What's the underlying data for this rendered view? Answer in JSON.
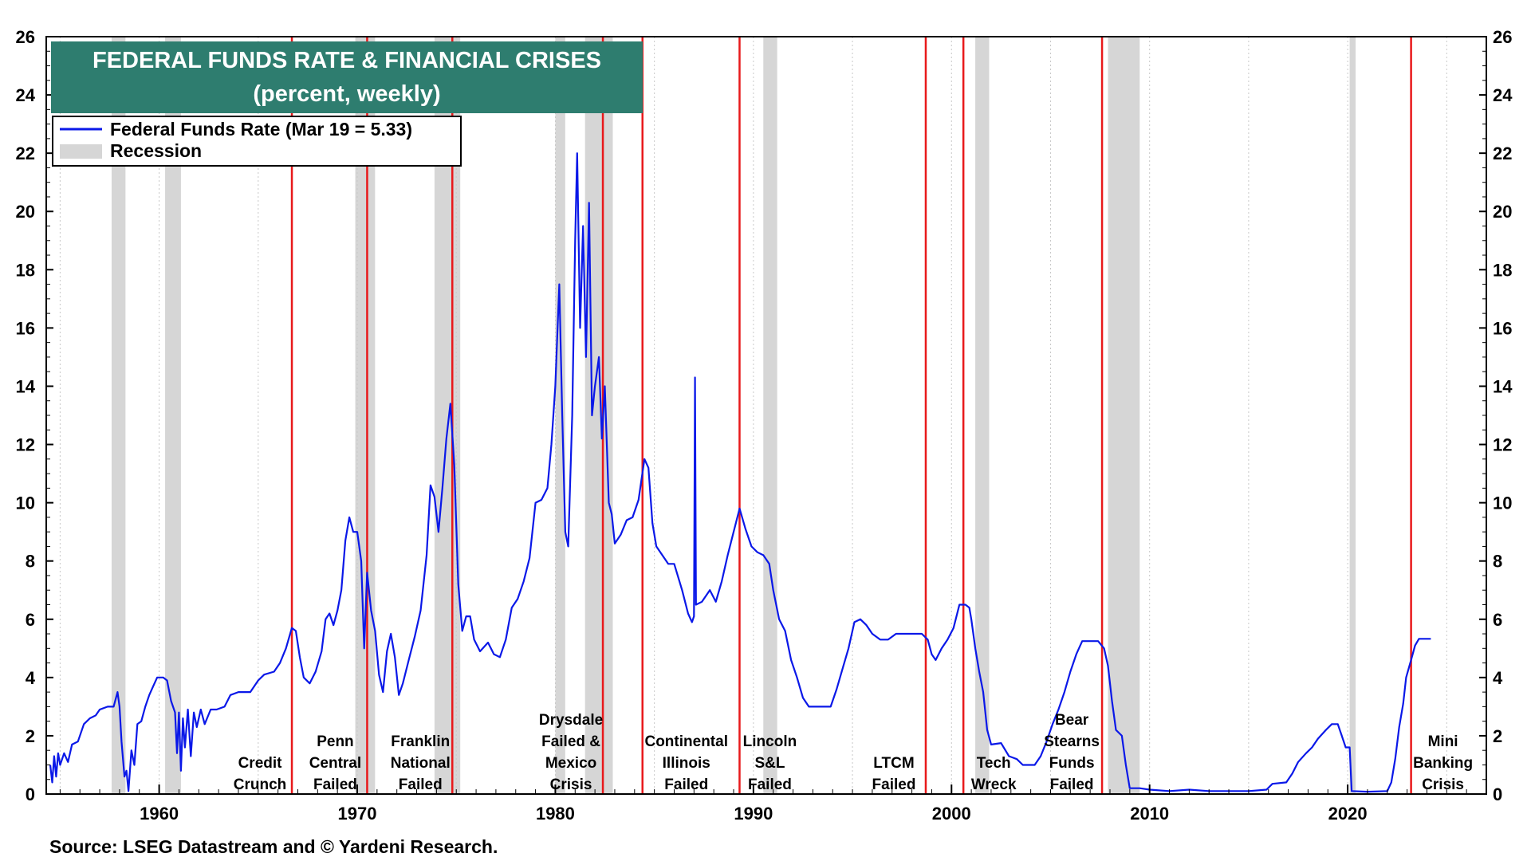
{
  "chart_data": {
    "type": "line",
    "title": "FEDERAL FUNDS RATE & FINANCIAL CRISES",
    "subtitle": "(percent, weekly)",
    "source": "Source: LSEG Datastream and © Yardeni Research.",
    "xlim": [
      1954.3,
      2027.0
    ],
    "ylim": [
      0,
      26
    ],
    "y_ticks": [
      "0",
      "2",
      "4",
      "6",
      "8",
      "10",
      "12",
      "14",
      "16",
      "18",
      "20",
      "22",
      "24",
      "26"
    ],
    "x_ticks": [
      {
        "value": 1960,
        "label": "1960"
      },
      {
        "value": 1970,
        "label": "1970"
      },
      {
        "value": 1980,
        "label": "1980"
      },
      {
        "value": 1990,
        "label": "1990"
      },
      {
        "value": 2000,
        "label": "2000"
      },
      {
        "value": 2010,
        "label": "2010"
      },
      {
        "value": 2020,
        "label": "2020"
      }
    ],
    "grid": "vertical-dotted",
    "legend": {
      "placement": "top-left",
      "items": [
        {
          "label": "Federal Funds Rate (Mar 19 = 5.33)",
          "kind": "line"
        },
        {
          "label": "Recession",
          "kind": "band"
        }
      ]
    },
    "colors": {
      "series": "#0a18e8",
      "recession": "#d6d6d6",
      "crisis": "#e8191b",
      "title_bg": "#2e7d6f"
    },
    "recessions": [
      [
        1957.6,
        1958.3
      ],
      [
        1960.3,
        1961.1
      ],
      [
        1969.9,
        1970.9
      ],
      [
        1973.9,
        1975.2
      ],
      [
        1980.0,
        1980.5
      ],
      [
        1981.5,
        1982.9
      ],
      [
        1990.5,
        1991.2
      ],
      [
        2001.2,
        2001.9
      ],
      [
        2007.9,
        2009.5
      ],
      [
        2020.1,
        2020.4
      ]
    ],
    "crises": [
      {
        "date": 1966.7,
        "lines": [
          "Credit",
          "Crunch"
        ]
      },
      {
        "date": 1970.5,
        "lines": [
          "Penn",
          "Central",
          "Failed"
        ]
      },
      {
        "date": 1974.8,
        "lines": [
          "Franklin",
          "National",
          "Failed"
        ]
      },
      {
        "date": 1982.4,
        "lines": [
          "Drysdale",
          "Failed &",
          "Mexico",
          "Crisis"
        ]
      },
      {
        "date": 1984.4,
        "lines": [
          "Continental",
          "Illinois",
          "Failed"
        ]
      },
      {
        "date": 1989.3,
        "lines": [
          "Lincoln",
          "S&L",
          "Failed"
        ]
      },
      {
        "date": 1998.7,
        "lines": [
          "LTCM",
          "Failed"
        ]
      },
      {
        "date": 2000.6,
        "lines": [
          "Tech",
          "Wreck"
        ]
      },
      {
        "date": 2007.6,
        "lines": [
          "Bear",
          "Stearns",
          "Funds",
          "Failed"
        ]
      },
      {
        "date": 2023.2,
        "lines": [
          "Mini",
          "Banking",
          "Crisis"
        ]
      }
    ],
    "series": [
      {
        "name": "Federal Funds Rate",
        "points": [
          [
            1954.5,
            1.0
          ],
          [
            1954.6,
            0.4
          ],
          [
            1954.7,
            1.3
          ],
          [
            1954.8,
            0.6
          ],
          [
            1954.9,
            1.4
          ],
          [
            1955.0,
            1.0
          ],
          [
            1955.2,
            1.4
          ],
          [
            1955.4,
            1.1
          ],
          [
            1955.6,
            1.7
          ],
          [
            1955.9,
            1.8
          ],
          [
            1956.2,
            2.4
          ],
          [
            1956.5,
            2.6
          ],
          [
            1956.8,
            2.7
          ],
          [
            1957.0,
            2.9
          ],
          [
            1957.4,
            3.0
          ],
          [
            1957.7,
            3.0
          ],
          [
            1957.9,
            3.5
          ],
          [
            1958.0,
            3.0
          ],
          [
            1958.1,
            1.8
          ],
          [
            1958.25,
            0.6
          ],
          [
            1958.35,
            0.8
          ],
          [
            1958.45,
            0.1
          ],
          [
            1958.6,
            1.5
          ],
          [
            1958.75,
            1.0
          ],
          [
            1958.9,
            2.4
          ],
          [
            1959.1,
            2.5
          ],
          [
            1959.3,
            3.0
          ],
          [
            1959.5,
            3.4
          ],
          [
            1959.7,
            3.7
          ],
          [
            1959.9,
            4.0
          ],
          [
            1960.2,
            4.0
          ],
          [
            1960.4,
            3.9
          ],
          [
            1960.6,
            3.2
          ],
          [
            1960.8,
            2.8
          ],
          [
            1960.9,
            1.4
          ],
          [
            1961.0,
            2.8
          ],
          [
            1961.1,
            0.8
          ],
          [
            1961.2,
            2.6
          ],
          [
            1961.3,
            1.6
          ],
          [
            1961.45,
            2.9
          ],
          [
            1961.6,
            1.3
          ],
          [
            1961.75,
            2.8
          ],
          [
            1961.9,
            2.3
          ],
          [
            1962.1,
            2.9
          ],
          [
            1962.3,
            2.4
          ],
          [
            1962.6,
            2.9
          ],
          [
            1962.9,
            2.9
          ],
          [
            1963.3,
            3.0
          ],
          [
            1963.6,
            3.4
          ],
          [
            1964.0,
            3.5
          ],
          [
            1964.6,
            3.5
          ],
          [
            1965.0,
            3.9
          ],
          [
            1965.3,
            4.1
          ],
          [
            1965.8,
            4.2
          ],
          [
            1966.1,
            4.5
          ],
          [
            1966.4,
            5.0
          ],
          [
            1966.7,
            5.7
          ],
          [
            1966.9,
            5.6
          ],
          [
            1967.1,
            4.7
          ],
          [
            1967.3,
            4.0
          ],
          [
            1967.6,
            3.8
          ],
          [
            1967.9,
            4.2
          ],
          [
            1968.2,
            4.9
          ],
          [
            1968.4,
            6.0
          ],
          [
            1968.6,
            6.2
          ],
          [
            1968.8,
            5.8
          ],
          [
            1969.0,
            6.3
          ],
          [
            1969.2,
            7.0
          ],
          [
            1969.4,
            8.7
          ],
          [
            1969.6,
            9.5
          ],
          [
            1969.8,
            9.0
          ],
          [
            1970.0,
            9.0
          ],
          [
            1970.2,
            8.0
          ],
          [
            1970.35,
            5.0
          ],
          [
            1970.5,
            7.6
          ],
          [
            1970.7,
            6.3
          ],
          [
            1970.9,
            5.6
          ],
          [
            1971.1,
            4.1
          ],
          [
            1971.3,
            3.5
          ],
          [
            1971.5,
            4.9
          ],
          [
            1971.7,
            5.5
          ],
          [
            1971.9,
            4.7
          ],
          [
            1972.1,
            3.4
          ],
          [
            1972.3,
            3.8
          ],
          [
            1972.6,
            4.6
          ],
          [
            1972.9,
            5.4
          ],
          [
            1973.2,
            6.3
          ],
          [
            1973.5,
            8.2
          ],
          [
            1973.7,
            10.6
          ],
          [
            1973.9,
            10.2
          ],
          [
            1974.1,
            9.0
          ],
          [
            1974.3,
            10.5
          ],
          [
            1974.5,
            12.2
          ],
          [
            1974.7,
            13.4
          ],
          [
            1974.9,
            11.3
          ],
          [
            1975.1,
            7.2
          ],
          [
            1975.3,
            5.6
          ],
          [
            1975.5,
            6.1
          ],
          [
            1975.7,
            6.1
          ],
          [
            1975.9,
            5.3
          ],
          [
            1976.2,
            4.9
          ],
          [
            1976.6,
            5.2
          ],
          [
            1976.9,
            4.8
          ],
          [
            1977.2,
            4.7
          ],
          [
            1977.5,
            5.3
          ],
          [
            1977.8,
            6.4
          ],
          [
            1978.1,
            6.7
          ],
          [
            1978.4,
            7.3
          ],
          [
            1978.7,
            8.1
          ],
          [
            1979.0,
            10.0
          ],
          [
            1979.3,
            10.1
          ],
          [
            1979.6,
            10.5
          ],
          [
            1979.8,
            12.0
          ],
          [
            1980.0,
            14.0
          ],
          [
            1980.2,
            17.5
          ],
          [
            1980.35,
            13.0
          ],
          [
            1980.5,
            9.0
          ],
          [
            1980.65,
            8.5
          ],
          [
            1980.85,
            13.0
          ],
          [
            1981.0,
            19.0
          ],
          [
            1981.1,
            22.0
          ],
          [
            1981.25,
            16.0
          ],
          [
            1981.4,
            19.5
          ],
          [
            1981.55,
            15.0
          ],
          [
            1981.7,
            20.3
          ],
          [
            1981.85,
            13.0
          ],
          [
            1982.0,
            14.0
          ],
          [
            1982.2,
            15.0
          ],
          [
            1982.35,
            12.2
          ],
          [
            1982.5,
            14.0
          ],
          [
            1982.7,
            10.0
          ],
          [
            1982.85,
            9.6
          ],
          [
            1983.0,
            8.6
          ],
          [
            1983.3,
            8.9
          ],
          [
            1983.6,
            9.4
          ],
          [
            1983.9,
            9.5
          ],
          [
            1984.2,
            10.1
          ],
          [
            1984.5,
            11.5
          ],
          [
            1984.7,
            11.2
          ],
          [
            1984.9,
            9.3
          ],
          [
            1985.1,
            8.5
          ],
          [
            1985.4,
            8.2
          ],
          [
            1985.7,
            7.9
          ],
          [
            1986.0,
            7.9
          ],
          [
            1986.4,
            7.0
          ],
          [
            1986.7,
            6.2
          ],
          [
            1986.9,
            5.9
          ],
          [
            1987.0,
            6.1
          ],
          [
            1987.05,
            14.3
          ],
          [
            1987.1,
            6.5
          ],
          [
            1987.4,
            6.6
          ],
          [
            1987.8,
            7.0
          ],
          [
            1988.1,
            6.6
          ],
          [
            1988.4,
            7.3
          ],
          [
            1988.7,
            8.2
          ],
          [
            1989.0,
            9.0
          ],
          [
            1989.3,
            9.8
          ],
          [
            1989.6,
            9.1
          ],
          [
            1989.9,
            8.5
          ],
          [
            1990.2,
            8.3
          ],
          [
            1990.5,
            8.2
          ],
          [
            1990.8,
            7.9
          ],
          [
            1991.0,
            7.0
          ],
          [
            1991.3,
            6.0
          ],
          [
            1991.6,
            5.6
          ],
          [
            1991.9,
            4.6
          ],
          [
            1992.2,
            4.0
          ],
          [
            1992.5,
            3.3
          ],
          [
            1992.8,
            3.0
          ],
          [
            1993.2,
            3.0
          ],
          [
            1993.6,
            3.0
          ],
          [
            1993.9,
            3.0
          ],
          [
            1994.2,
            3.6
          ],
          [
            1994.5,
            4.3
          ],
          [
            1994.8,
            5.0
          ],
          [
            1995.1,
            5.9
          ],
          [
            1995.4,
            6.0
          ],
          [
            1995.7,
            5.8
          ],
          [
            1996.0,
            5.5
          ],
          [
            1996.4,
            5.3
          ],
          [
            1996.8,
            5.3
          ],
          [
            1997.2,
            5.5
          ],
          [
            1997.6,
            5.5
          ],
          [
            1997.9,
            5.5
          ],
          [
            1998.2,
            5.5
          ],
          [
            1998.5,
            5.5
          ],
          [
            1998.8,
            5.3
          ],
          [
            1999.0,
            4.8
          ],
          [
            1999.2,
            4.6
          ],
          [
            1999.5,
            5.0
          ],
          [
            1999.8,
            5.3
          ],
          [
            2000.1,
            5.7
          ],
          [
            2000.4,
            6.5
          ],
          [
            2000.7,
            6.5
          ],
          [
            2000.9,
            6.4
          ],
          [
            2001.0,
            6.0
          ],
          [
            2001.2,
            5.0
          ],
          [
            2001.4,
            4.2
          ],
          [
            2001.6,
            3.5
          ],
          [
            2001.8,
            2.2
          ],
          [
            2002.0,
            1.7
          ],
          [
            2002.5,
            1.75
          ],
          [
            2002.9,
            1.3
          ],
          [
            2003.3,
            1.2
          ],
          [
            2003.6,
            1.0
          ],
          [
            2004.2,
            1.0
          ],
          [
            2004.5,
            1.3
          ],
          [
            2004.8,
            1.8
          ],
          [
            2005.1,
            2.4
          ],
          [
            2005.4,
            2.9
          ],
          [
            2005.7,
            3.5
          ],
          [
            2006.0,
            4.2
          ],
          [
            2006.3,
            4.8
          ],
          [
            2006.6,
            5.25
          ],
          [
            2007.0,
            5.25
          ],
          [
            2007.4,
            5.25
          ],
          [
            2007.7,
            5.0
          ],
          [
            2007.9,
            4.4
          ],
          [
            2008.1,
            3.2
          ],
          [
            2008.3,
            2.2
          ],
          [
            2008.6,
            2.0
          ],
          [
            2008.8,
            1.0
          ],
          [
            2009.0,
            0.2
          ],
          [
            2009.5,
            0.2
          ],
          [
            2010.0,
            0.15
          ],
          [
            2011.0,
            0.1
          ],
          [
            2012.0,
            0.15
          ],
          [
            2013.0,
            0.1
          ],
          [
            2014.0,
            0.1
          ],
          [
            2015.0,
            0.1
          ],
          [
            2015.9,
            0.15
          ],
          [
            2016.2,
            0.35
          ],
          [
            2016.9,
            0.4
          ],
          [
            2017.2,
            0.7
          ],
          [
            2017.5,
            1.1
          ],
          [
            2017.9,
            1.4
          ],
          [
            2018.2,
            1.6
          ],
          [
            2018.5,
            1.9
          ],
          [
            2018.9,
            2.2
          ],
          [
            2019.2,
            2.4
          ],
          [
            2019.5,
            2.4
          ],
          [
            2019.7,
            2.0
          ],
          [
            2019.9,
            1.6
          ],
          [
            2020.1,
            1.6
          ],
          [
            2020.2,
            0.1
          ],
          [
            2021.0,
            0.08
          ],
          [
            2022.0,
            0.1
          ],
          [
            2022.2,
            0.4
          ],
          [
            2022.4,
            1.2
          ],
          [
            2022.6,
            2.3
          ],
          [
            2022.8,
            3.1
          ],
          [
            2022.95,
            4.0
          ],
          [
            2023.2,
            4.6
          ],
          [
            2023.4,
            5.1
          ],
          [
            2023.6,
            5.33
          ],
          [
            2024.2,
            5.33
          ]
        ]
      }
    ]
  }
}
